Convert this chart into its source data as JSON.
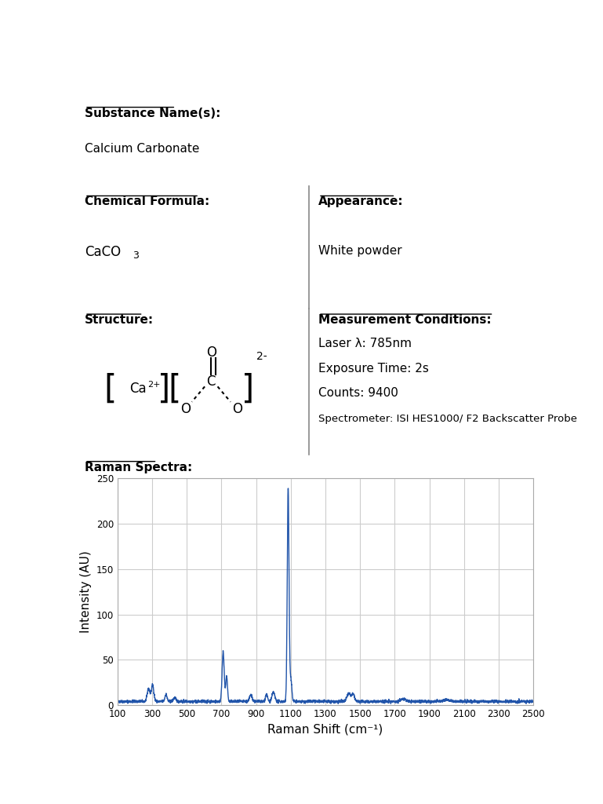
{
  "substance_name_label": "Substance Name(s):",
  "substance_name_value": "Calcium Carbonate",
  "chemical_formula_label": "Chemical Formula:",
  "appearance_label": "Appearance:",
  "appearance_value": "White powder",
  "structure_label": "Structure:",
  "measurement_label": "Measurement Conditions:",
  "laser": "Laser λ: 785nm",
  "exposure": "Exposure Time: 2s",
  "counts": "Counts: 9400",
  "spectrometer": "Spectrometer: ISI HES1000/ F2 Backscatter Probe",
  "raman_label": "Raman Spectra:",
  "xlabel": "Raman Shift (cm⁻¹)",
  "ylabel": "Intensity (AU)",
  "xlim": [
    100,
    2500
  ],
  "ylim": [
    0,
    250
  ],
  "yticks": [
    0,
    50,
    100,
    150,
    200,
    250
  ],
  "xticks": [
    100,
    300,
    500,
    700,
    900,
    1100,
    1300,
    1500,
    1700,
    1900,
    2100,
    2300,
    2500
  ],
  "line_color": "#2255aa",
  "background_color": "#ffffff",
  "grid_color": "#cccccc",
  "text_color": "#000000",
  "border_color": "#888888"
}
